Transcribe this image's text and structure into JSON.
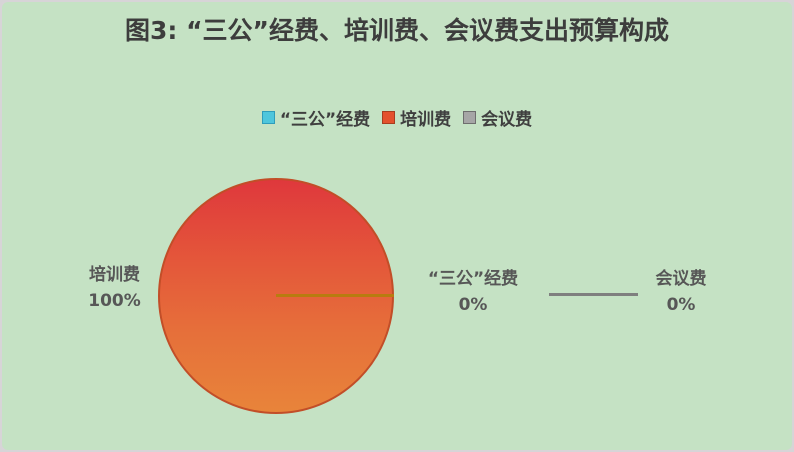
{
  "page": {
    "background": "#d7d4d7",
    "panel_background": "#c5e2c4"
  },
  "title": "图3: “三公”经费、培训费、会议费支出预算构成",
  "legend": {
    "items": [
      {
        "label": "“三公”经费",
        "color": "#4ec6dc"
      },
      {
        "label": "培训费",
        "color": "#e4512d"
      },
      {
        "label": "会议费",
        "color": "#a6a6a6"
      }
    ]
  },
  "labels": {
    "training": {
      "name": "培训费",
      "pct": "100%"
    },
    "sangong": {
      "name": "“三公”经费",
      "pct": "0%"
    },
    "meeting": {
      "name": "会议费",
      "pct": "0%"
    }
  },
  "chart_data": {
    "type": "pie",
    "title": "图3: “三公”经费、培训费、会议费支出预算构成",
    "categories": [
      "“三公”经费",
      "培训费",
      "会议费"
    ],
    "values": [
      0,
      100,
      0
    ],
    "unit": "percent",
    "colors": [
      "#4ec6dc",
      "#e4512d",
      "#a6a6a6"
    ],
    "pie_fill_gradient": [
      "#df383c",
      "#e8843a"
    ],
    "legend_position": "top",
    "data_labels": [
      {
        "category": "“三公”经费",
        "text": "“三公”经费 0%"
      },
      {
        "category": "培训费",
        "text": "培训费 100%"
      },
      {
        "category": "会议费",
        "text": "会议费 0%"
      }
    ]
  }
}
